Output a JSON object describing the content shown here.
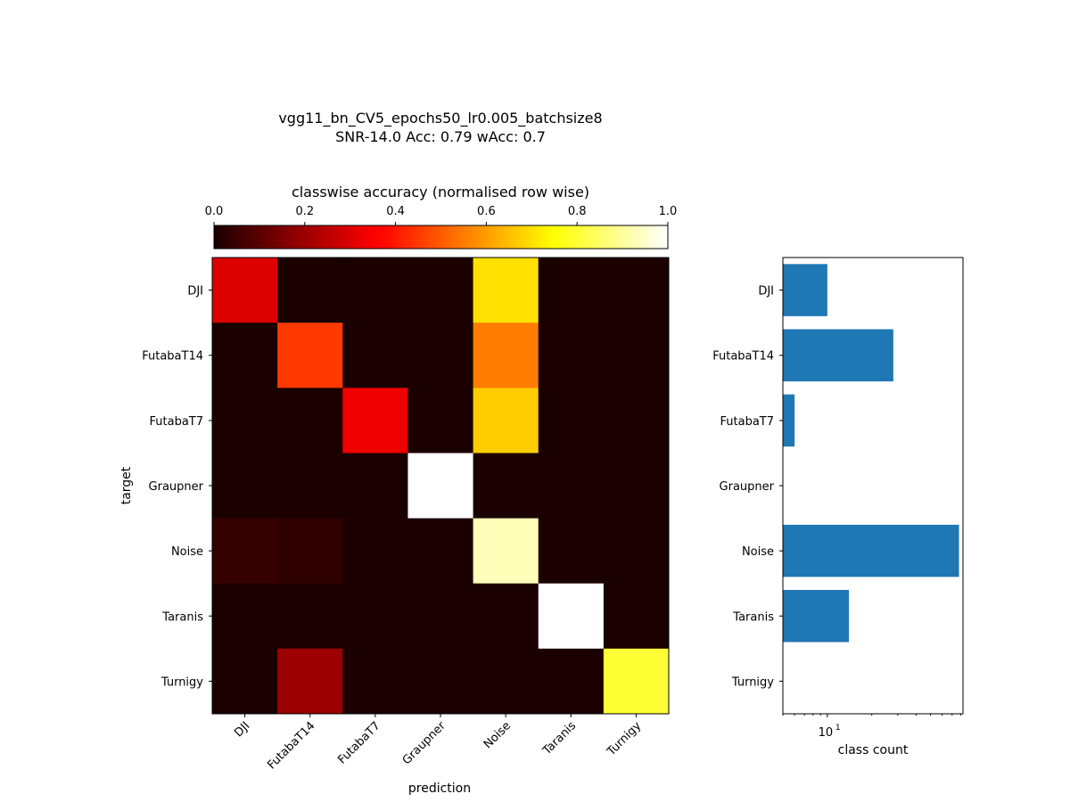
{
  "figure": {
    "title_line1": "vgg11_bn_CV5_epochs50_lr0.005_batchsize8",
    "title_line2": "SNR-14.0 Acc: 0.79 wAcc: 0.7"
  },
  "chart_data": [
    {
      "type": "heatmap",
      "title": "classwise accuracy (normalised row wise)",
      "xlabel": "prediction",
      "ylabel": "target",
      "x_categories": [
        "DJI",
        "FutabaT14",
        "FutabaT7",
        "Graupner",
        "Noise",
        "Taranis",
        "Turnigy"
      ],
      "y_categories": [
        "DJI",
        "FutabaT14",
        "FutabaT7",
        "Graupner",
        "Noise",
        "Taranis",
        "Turnigy"
      ],
      "colormap": "hot",
      "vmin": 0.0,
      "vmax": 1.0,
      "colorbar_ticks": [
        "0.0",
        "0.2",
        "0.4",
        "0.6",
        "0.8",
        "1.0"
      ],
      "values": [
        [
          0.3,
          0.0,
          0.0,
          0.0,
          0.7,
          0.0,
          0.0
        ],
        [
          0.0,
          0.45,
          0.0,
          0.0,
          0.55,
          0.0,
          0.0
        ],
        [
          0.0,
          0.0,
          0.33,
          0.0,
          0.67,
          0.0,
          0.0
        ],
        [
          0.0,
          0.0,
          0.0,
          1.0,
          0.0,
          0.0,
          0.0
        ],
        [
          0.04,
          0.03,
          0.0,
          0.0,
          0.93,
          0.0,
          0.0
        ],
        [
          0.0,
          0.0,
          0.0,
          0.0,
          0.0,
          1.0,
          0.0
        ],
        [
          0.0,
          0.2,
          0.0,
          0.0,
          0.0,
          0.0,
          0.8
        ]
      ]
    },
    {
      "type": "bar",
      "orientation": "horizontal",
      "categories": [
        "DJI",
        "FutabaT14",
        "FutabaT7",
        "Graupner",
        "Noise",
        "Taranis",
        "Turnigy"
      ],
      "values": [
        10,
        28,
        6,
        5,
        78,
        14,
        5
      ],
      "xlabel": "class count",
      "xscale": "log",
      "xlim": [
        5,
        83
      ],
      "x_tick_label": "10",
      "x_tick_exponent": "1",
      "bar_color": "#1f77b4"
    }
  ]
}
